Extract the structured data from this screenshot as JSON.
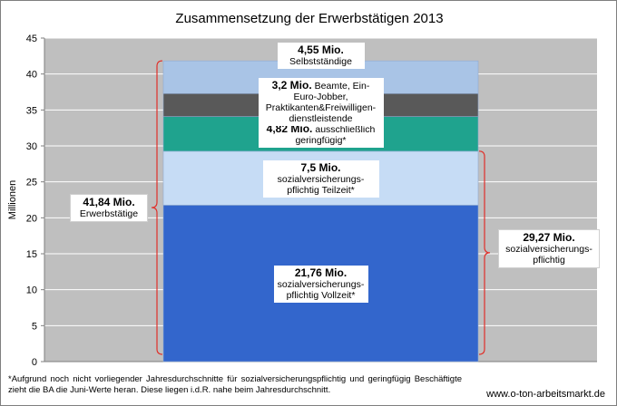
{
  "chart_data": {
    "type": "bar",
    "stacked": true,
    "title": "Zusammensetzung der Erwerbstätigen 2013",
    "ylabel": "Millionen",
    "ylim": [
      0,
      45
    ],
    "yticks": [
      0,
      5,
      10,
      15,
      20,
      25,
      30,
      35,
      40,
      45
    ],
    "grid": true,
    "segments": [
      {
        "value": 21.76,
        "value_label": "21,76 Mio.",
        "desc": "sozialversicherungs-\npflichtig Vollzeit*",
        "color": "#3366cc"
      },
      {
        "value": 7.5,
        "value_label": "7,5 Mio.",
        "desc": "sozialversicherungs-\npflichtig Teilzeit*",
        "color": "#c6dcf5"
      },
      {
        "value": 4.82,
        "value_label": "4,82 Mio.",
        "desc": "ausschließlich\ngeringfügig*",
        "color": "#1fa38e"
      },
      {
        "value": 3.2,
        "value_label": "3,2 Mio.",
        "desc": "Beamte, Ein-\nEuro-Jobber,\nPraktikanten&Freiwilligen-\ndienstleistende",
        "color": "#595959"
      },
      {
        "value": 4.55,
        "value_label": "4,55 Mio.",
        "desc": "Selbstständige",
        "color": "#a9c4e6"
      }
    ],
    "annotations": [
      {
        "value_label": "41,84 Mio.",
        "desc": "Erwerbstätige",
        "range": [
          0,
          41.84
        ],
        "side": "left"
      },
      {
        "value_label": "29,27 Mio.",
        "desc": "sozialversicherungs-\npflichtig",
        "range": [
          0,
          29.27
        ],
        "side": "right"
      }
    ]
  },
  "footnote": "*Aufgrund noch nicht vorliegender Jahresdurchschnitte für sozialversicherungspflichtig und geringfügig Beschäftigte zieht die BA die Juni-Werte heran. Diese liegen i.d.R. nahe beim Jahresdurchschnitt.",
  "source": "www.o-ton-arbeitsmarkt.de",
  "colors": {
    "plot_bg": "#bfbfbf",
    "grid": "#ffffff",
    "bracket": "#e0302a"
  }
}
